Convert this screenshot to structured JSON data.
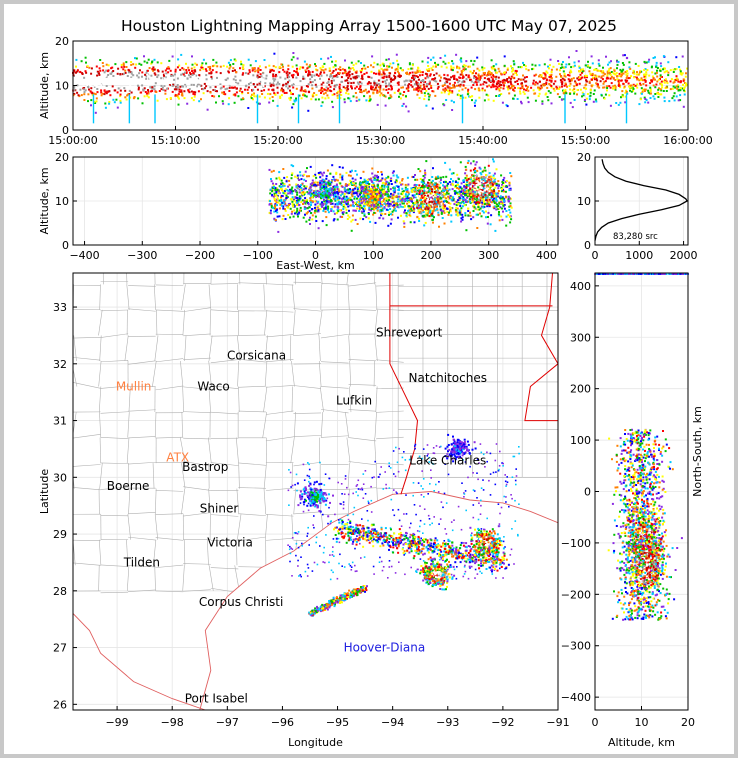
{
  "title": "Houston Lightning Mapping Array 1500-1600 UTC May 07, 2025",
  "colors": {
    "density": [
      "#0000ff",
      "#8a2be2",
      "#00c8ff",
      "#00c000",
      "#ffff00",
      "#ff8000",
      "#ff0000",
      "#cc0000",
      "#a0a0a0",
      "#ffffff"
    ],
    "border_state": "#e00000",
    "border_county": "#b0b0b0",
    "coast": "#e06060"
  },
  "chart_data": [
    {
      "type": "heatmap",
      "name": "altitude-time",
      "xlabel": "",
      "ylabel": "Altitude, km",
      "xticks": [
        "15:00:00",
        "15:10:00",
        "15:20:00",
        "15:30:00",
        "15:40:00",
        "15:50:00",
        "16:00:00"
      ],
      "yticks": [
        0,
        10,
        20
      ],
      "xlim": [
        "15:00:00",
        "16:00:00"
      ],
      "ylim": [
        0,
        20
      ],
      "core_altitude_km": [
        8,
        14
      ],
      "spikes_min": [
        2,
        5.5,
        8,
        18,
        22,
        26,
        38,
        48,
        54
      ]
    },
    {
      "type": "heatmap",
      "name": "east-west-altitude",
      "xlabel": "East-West, km",
      "ylabel": "Altitude, km",
      "xticks": [
        -400,
        -300,
        -200,
        -100,
        0,
        100,
        200,
        300,
        400
      ],
      "yticks": [
        0,
        10,
        20
      ],
      "xlim": [
        -420,
        420
      ],
      "ylim": [
        0,
        20
      ],
      "cells": [
        {
          "x": 200,
          "y": 11,
          "intensity": 1.0
        },
        {
          "x": 285,
          "y": 13,
          "intensity": 1.0
        },
        {
          "x": 100,
          "y": 11,
          "intensity": 0.55
        },
        {
          "x": 20,
          "y": 12,
          "intensity": 0.35
        }
      ]
    },
    {
      "type": "line",
      "name": "altitude-histogram",
      "annotation": "83,280 src",
      "xticks": [
        0,
        1000,
        2000
      ],
      "yticks": [
        0,
        10,
        20
      ],
      "xlim": [
        0,
        2100
      ],
      "ylim": [
        0,
        20
      ],
      "x": [
        0,
        20,
        60,
        150,
        300,
        600,
        1000,
        1500,
        1900,
        2080,
        2050,
        1900,
        1600,
        1100,
        700,
        450,
        300,
        220,
        180,
        160
      ],
      "y": [
        1,
        2,
        3,
        4,
        5,
        6,
        7,
        8,
        9,
        10,
        10.5,
        11.5,
        12.5,
        13.5,
        14.5,
        15.5,
        16.5,
        17.5,
        18.5,
        19.5
      ]
    },
    {
      "type": "heatmap",
      "name": "plan-view",
      "xlabel": "Longitude",
      "ylabel": "Latitude",
      "xticks": [
        -99,
        -98,
        -97,
        -96,
        -95,
        -94,
        -93,
        -92,
        -91
      ],
      "yticks": [
        26,
        27,
        28,
        29,
        30,
        31,
        32,
        33
      ],
      "xlim": [
        -99.8,
        -91
      ],
      "ylim": [
        25.9,
        33.6
      ],
      "cities": [
        {
          "name": "Shreveport",
          "lon": -93.7,
          "lat": 32.55,
          "color": "#000000"
        },
        {
          "name": "Corsicana",
          "lon": -96.47,
          "lat": 32.15,
          "color": "#000000"
        },
        {
          "name": "Natchitoches",
          "lon": -93.0,
          "lat": 31.75,
          "color": "#000000"
        },
        {
          "name": "Mullin",
          "lon": -98.7,
          "lat": 31.6,
          "color": "#ff8040"
        },
        {
          "name": "Waco",
          "lon": -97.25,
          "lat": 31.6,
          "color": "#000000"
        },
        {
          "name": "Lufkin",
          "lon": -94.7,
          "lat": 31.35,
          "color": "#000000"
        },
        {
          "name": "ATX",
          "lon": -97.9,
          "lat": 30.35,
          "color": "#ff8040"
        },
        {
          "name": "Bastrop",
          "lon": -97.4,
          "lat": 30.18,
          "color": "#000000"
        },
        {
          "name": "Lake Charles",
          "lon": -93.0,
          "lat": 30.3,
          "color": "#000000"
        },
        {
          "name": "Boerne",
          "lon": -98.8,
          "lat": 29.85,
          "color": "#000000"
        },
        {
          "name": "Shiner",
          "lon": -97.15,
          "lat": 29.45,
          "color": "#000000"
        },
        {
          "name": "Victoria",
          "lon": -96.95,
          "lat": 28.85,
          "color": "#000000"
        },
        {
          "name": "Tilden",
          "lon": -98.55,
          "lat": 28.5,
          "color": "#000000"
        },
        {
          "name": "Corpus Christi",
          "lon": -96.75,
          "lat": 27.8,
          "color": "#000000"
        },
        {
          "name": "Hoover-Diana",
          "lon": -94.15,
          "lat": 27.0,
          "color": "#2020e0"
        },
        {
          "name": "Port Isabel",
          "lon": -97.2,
          "lat": 26.1,
          "color": "#000000"
        }
      ],
      "cells": [
        {
          "lon": -95.4,
          "lat": 29.65,
          "intensity": 0.35
        },
        {
          "lon": -93.2,
          "lat": 28.3,
          "intensity": 1.0
        },
        {
          "lon": -92.3,
          "lat": 28.85,
          "intensity": 1.0
        },
        {
          "lon": -95.0,
          "lat": 27.85,
          "intensity": 0.6
        },
        {
          "lon": -92.8,
          "lat": 30.5,
          "intensity": 0.2
        }
      ]
    },
    {
      "type": "heatmap",
      "name": "north-south-altitude",
      "xlabel": "Altitude, km",
      "ylabel": "North-South, km",
      "xticks": [
        0,
        10,
        20
      ],
      "yticks": [
        -400,
        -300,
        -200,
        -100,
        0,
        100,
        200,
        300,
        400
      ],
      "xlim": [
        0,
        20
      ],
      "ylim": [
        -425,
        425
      ],
      "cells": [
        {
          "alt": 11,
          "y": -100,
          "intensity": 1.0
        },
        {
          "alt": 11,
          "y": -140,
          "intensity": 0.9
        }
      ]
    }
  ]
}
